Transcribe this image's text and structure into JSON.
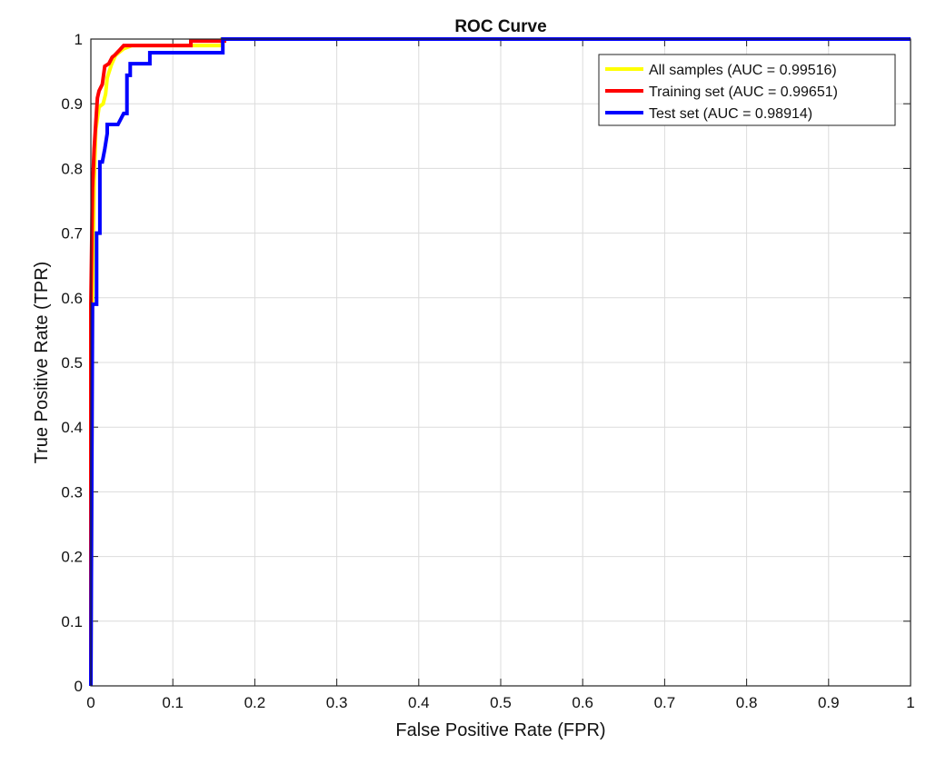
{
  "chart_data": {
    "type": "line",
    "title": "ROC Curve",
    "xlabel": "False Positive Rate (FPR)",
    "ylabel": "True Positive Rate (TPR)",
    "xlim": [
      0,
      1
    ],
    "ylim": [
      0,
      1
    ],
    "grid": true,
    "legend_position": "top-right",
    "xticks": [
      "0",
      "0.1",
      "0.2",
      "0.3",
      "0.4",
      "0.5",
      "0.6",
      "0.7",
      "0.8",
      "0.9",
      "1"
    ],
    "yticks": [
      "0",
      "0.1",
      "0.2",
      "0.3",
      "0.4",
      "0.5",
      "0.6",
      "0.7",
      "0.8",
      "0.9",
      "1"
    ],
    "series": [
      {
        "name": "All samples (AUC = 0.99516)",
        "color": "#ffff00",
        "points": [
          [
            0,
            0
          ],
          [
            0.002,
            0.6
          ],
          [
            0.004,
            0.78
          ],
          [
            0.006,
            0.86
          ],
          [
            0.01,
            0.895
          ],
          [
            0.015,
            0.9
          ],
          [
            0.018,
            0.915
          ],
          [
            0.02,
            0.94
          ],
          [
            0.025,
            0.96
          ],
          [
            0.03,
            0.975
          ],
          [
            0.04,
            0.985
          ],
          [
            0.05,
            0.99
          ],
          [
            0.16,
            0.99
          ],
          [
            0.16,
            1
          ],
          [
            1,
            1
          ]
        ]
      },
      {
        "name": "Training set (AUC = 0.99651)",
        "color": "#ff0000",
        "points": [
          [
            0,
            0
          ],
          [
            0,
            0.59
          ],
          [
            0.002,
            0.77
          ],
          [
            0.004,
            0.83
          ],
          [
            0.006,
            0.87
          ],
          [
            0.008,
            0.909
          ],
          [
            0.01,
            0.92
          ],
          [
            0.014,
            0.93
          ],
          [
            0.017,
            0.958
          ],
          [
            0.022,
            0.962
          ],
          [
            0.026,
            0.972
          ],
          [
            0.029,
            0.975
          ],
          [
            0.035,
            0.983
          ],
          [
            0.04,
            0.99
          ],
          [
            0.122,
            0.99
          ],
          [
            0.122,
            0.997
          ],
          [
            0.163,
            0.997
          ],
          [
            0.163,
            1
          ],
          [
            1,
            1
          ]
        ]
      },
      {
        "name": "Test set (AUC = 0.98914)",
        "color": "#0000ff",
        "points": [
          [
            0,
            0
          ],
          [
            0.002,
            0.59
          ],
          [
            0.007,
            0.59
          ],
          [
            0.007,
            0.7
          ],
          [
            0.011,
            0.7
          ],
          [
            0.011,
            0.81
          ],
          [
            0.014,
            0.81
          ],
          [
            0.017,
            0.83
          ],
          [
            0.02,
            0.854
          ],
          [
            0.02,
            0.868
          ],
          [
            0.033,
            0.868
          ],
          [
            0.04,
            0.885
          ],
          [
            0.044,
            0.885
          ],
          [
            0.044,
            0.944
          ],
          [
            0.048,
            0.944
          ],
          [
            0.048,
            0.962
          ],
          [
            0.072,
            0.962
          ],
          [
            0.072,
            0.979
          ],
          [
            0.161,
            0.979
          ],
          [
            0.161,
            1
          ],
          [
            1,
            1
          ]
        ]
      }
    ]
  }
}
